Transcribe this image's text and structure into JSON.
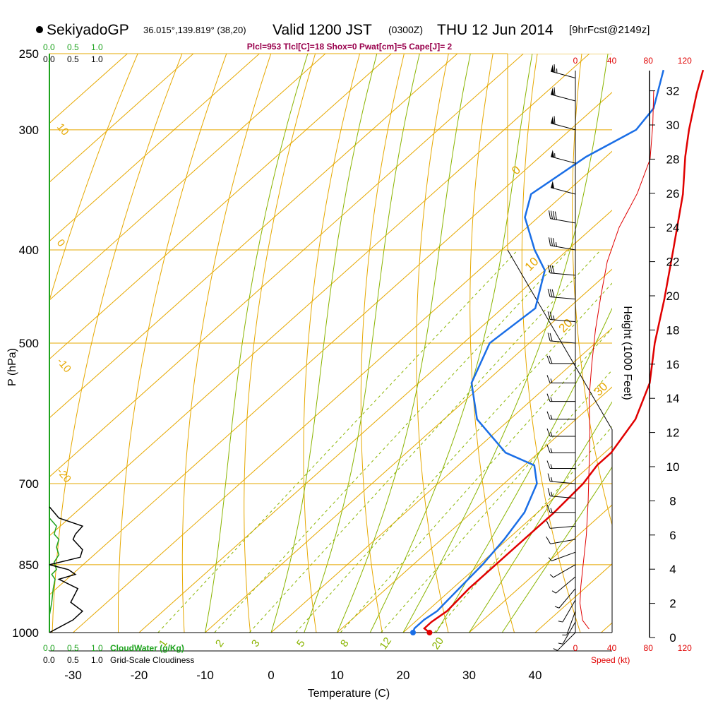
{
  "header": {
    "station": "SekiyadoGP",
    "location": "36.015°,139.819° (38,20)",
    "valid_label": "Valid 1200 JST",
    "utc": "(0300Z)",
    "date": "THU 12 Jun 2014",
    "forecast": "[9hrFcst@2149z]",
    "indices": "Plcl=953 Tlcl[C]=18 Shox=0 Pwat[cm]=5 Cape[J]= 2"
  },
  "colors": {
    "temperature": "#e00000",
    "dewpoint": "#1a6ee6",
    "isotherm": "#e6a800",
    "dry_adiabat": "#e6a800",
    "moist_adiabat": "#8ab400",
    "mixing_ratio": "#8ab400",
    "cloud_water": "#1fa31f",
    "cloudiness": "#000000",
    "wind_speed": "#e00000"
  },
  "chart_data": {
    "type": "line",
    "title": "",
    "xlabel": "Temperature (C)",
    "ylabel": "P (hPa)",
    "xlim": [
      -35,
      50
    ],
    "pressure_levels": [
      250,
      300,
      400,
      500,
      700,
      850,
      1000
    ],
    "x_ticks": [
      -30,
      -20,
      -10,
      0,
      10,
      20,
      30,
      40
    ],
    "isotherm_labels": [
      -20,
      -10,
      0,
      10,
      20,
      30
    ],
    "mixing_ratio_labels": [
      "1",
      "2",
      "3",
      "5",
      "8",
      "12",
      "20"
    ],
    "temperature_profile": [
      [
        1000,
        24.0
      ],
      [
        990,
        22.5
      ],
      [
        975,
        22.5
      ],
      [
        950,
        23.0
      ],
      [
        900,
        22.5
      ],
      [
        850,
        22.5
      ],
      [
        800,
        22.5
      ],
      [
        750,
        22.5
      ],
      [
        700,
        22.0
      ],
      [
        670,
        21.0
      ],
      [
        650,
        21.0
      ],
      [
        600,
        19.0
      ],
      [
        550,
        15.0
      ],
      [
        500,
        9.0
      ],
      [
        450,
        3.0
      ],
      [
        400,
        -4.0
      ],
      [
        350,
        -12.0
      ],
      [
        320,
        -18.0
      ],
      [
        300,
        -22.0
      ],
      [
        275,
        -27.0
      ],
      [
        260,
        -30.0
      ]
    ],
    "dewpoint_profile": [
      [
        1000,
        21.5
      ],
      [
        990,
        21.0
      ],
      [
        970,
        21.0
      ],
      [
        950,
        21.5
      ],
      [
        900,
        21.0
      ],
      [
        850,
        20.5
      ],
      [
        800,
        19.5
      ],
      [
        750,
        18.0
      ],
      [
        700,
        15.0
      ],
      [
        670,
        11.5
      ],
      [
        650,
        5.0
      ],
      [
        600,
        -5.0
      ],
      [
        550,
        -12.0
      ],
      [
        500,
        -16.0
      ],
      [
        460,
        -15.0
      ],
      [
        420,
        -20.0
      ],
      [
        400,
        -25.0
      ],
      [
        370,
        -32.0
      ],
      [
        350,
        -35.0
      ],
      [
        320,
        -33.0
      ],
      [
        300,
        -30.0
      ],
      [
        285,
        -31.0
      ],
      [
        260,
        -36.0
      ]
    ],
    "wind_profile": [
      [
        1000,
        225,
        5
      ],
      [
        975,
        210,
        5
      ],
      [
        950,
        200,
        5
      ],
      [
        925,
        210,
        5
      ],
      [
        900,
        220,
        5
      ],
      [
        875,
        230,
        5
      ],
      [
        850,
        240,
        5
      ],
      [
        825,
        250,
        5
      ],
      [
        800,
        260,
        10
      ],
      [
        775,
        265,
        10
      ],
      [
        750,
        270,
        15
      ],
      [
        725,
        275,
        15
      ],
      [
        700,
        275,
        15
      ],
      [
        675,
        270,
        15
      ],
      [
        650,
        270,
        15
      ],
      [
        625,
        270,
        15
      ],
      [
        600,
        270,
        15
      ],
      [
        575,
        270,
        15
      ],
      [
        550,
        270,
        15
      ],
      [
        525,
        270,
        20
      ],
      [
        500,
        275,
        20
      ],
      [
        475,
        275,
        25
      ],
      [
        450,
        275,
        30
      ],
      [
        425,
        275,
        30
      ],
      [
        400,
        280,
        35
      ],
      [
        375,
        280,
        40
      ],
      [
        350,
        285,
        50
      ],
      [
        325,
        285,
        55
      ],
      [
        300,
        285,
        60
      ],
      [
        280,
        285,
        60
      ],
      [
        265,
        285,
        65
      ]
    ],
    "height_axis": {
      "label": "Height (1000 Feet)",
      "ticks": [
        0,
        2,
        4,
        6,
        8,
        10,
        12,
        14,
        16,
        18,
        20,
        22,
        24,
        26,
        28,
        30,
        32
      ]
    },
    "wind_speed_profile": {
      "xlabel": "Speed (kt)",
      "ticks": [
        0,
        40,
        80,
        120
      ],
      "points": [
        [
          0.5,
          15
        ],
        [
          1,
          8
        ],
        [
          2,
          5
        ],
        [
          3,
          6
        ],
        [
          4,
          8
        ],
        [
          5,
          10
        ],
        [
          6,
          12
        ],
        [
          7,
          13
        ],
        [
          8,
          14
        ],
        [
          10,
          15
        ],
        [
          12,
          16
        ],
        [
          14,
          15
        ],
        [
          16,
          18
        ],
        [
          18,
          22
        ],
        [
          20,
          28
        ],
        [
          22,
          35
        ],
        [
          24,
          48
        ],
        [
          26,
          68
        ],
        [
          28,
          82
        ],
        [
          30,
          85
        ],
        [
          32,
          86
        ]
      ]
    },
    "cloud_water": {
      "label": "CloudWater (g/Kg)",
      "ticks": [
        "0.0",
        "0.5",
        "1.0"
      ],
      "points": [
        [
          1000,
          0.0
        ],
        [
          960,
          0.0
        ],
        [
          930,
          0.05
        ],
        [
          900,
          0.08
        ],
        [
          880,
          0.12
        ],
        [
          870,
          0.05
        ],
        [
          860,
          0.15
        ],
        [
          845,
          0.1
        ],
        [
          830,
          0.2
        ],
        [
          815,
          0.15
        ],
        [
          800,
          0.2
        ],
        [
          790,
          0.1
        ],
        [
          775,
          0.15
        ],
        [
          760,
          0.0
        ],
        [
          740,
          0.0
        ]
      ]
    },
    "grid_scale_cloudiness": {
      "label": "Grid-Scale Cloudiness",
      "ticks": [
        "0.0",
        "0.5",
        "1.0"
      ],
      "points": [
        [
          1000,
          0.0
        ],
        [
          970,
          0.5
        ],
        [
          950,
          0.7
        ],
        [
          930,
          0.45
        ],
        [
          900,
          0.6
        ],
        [
          880,
          0.2
        ],
        [
          870,
          0.55
        ],
        [
          860,
          0.4
        ],
        [
          850,
          0.0
        ],
        [
          835,
          0.65
        ],
        [
          820,
          0.7
        ],
        [
          800,
          0.5
        ],
        [
          790,
          0.55
        ],
        [
          775,
          0.7
        ],
        [
          760,
          0.2
        ],
        [
          740,
          0.0
        ]
      ]
    }
  }
}
